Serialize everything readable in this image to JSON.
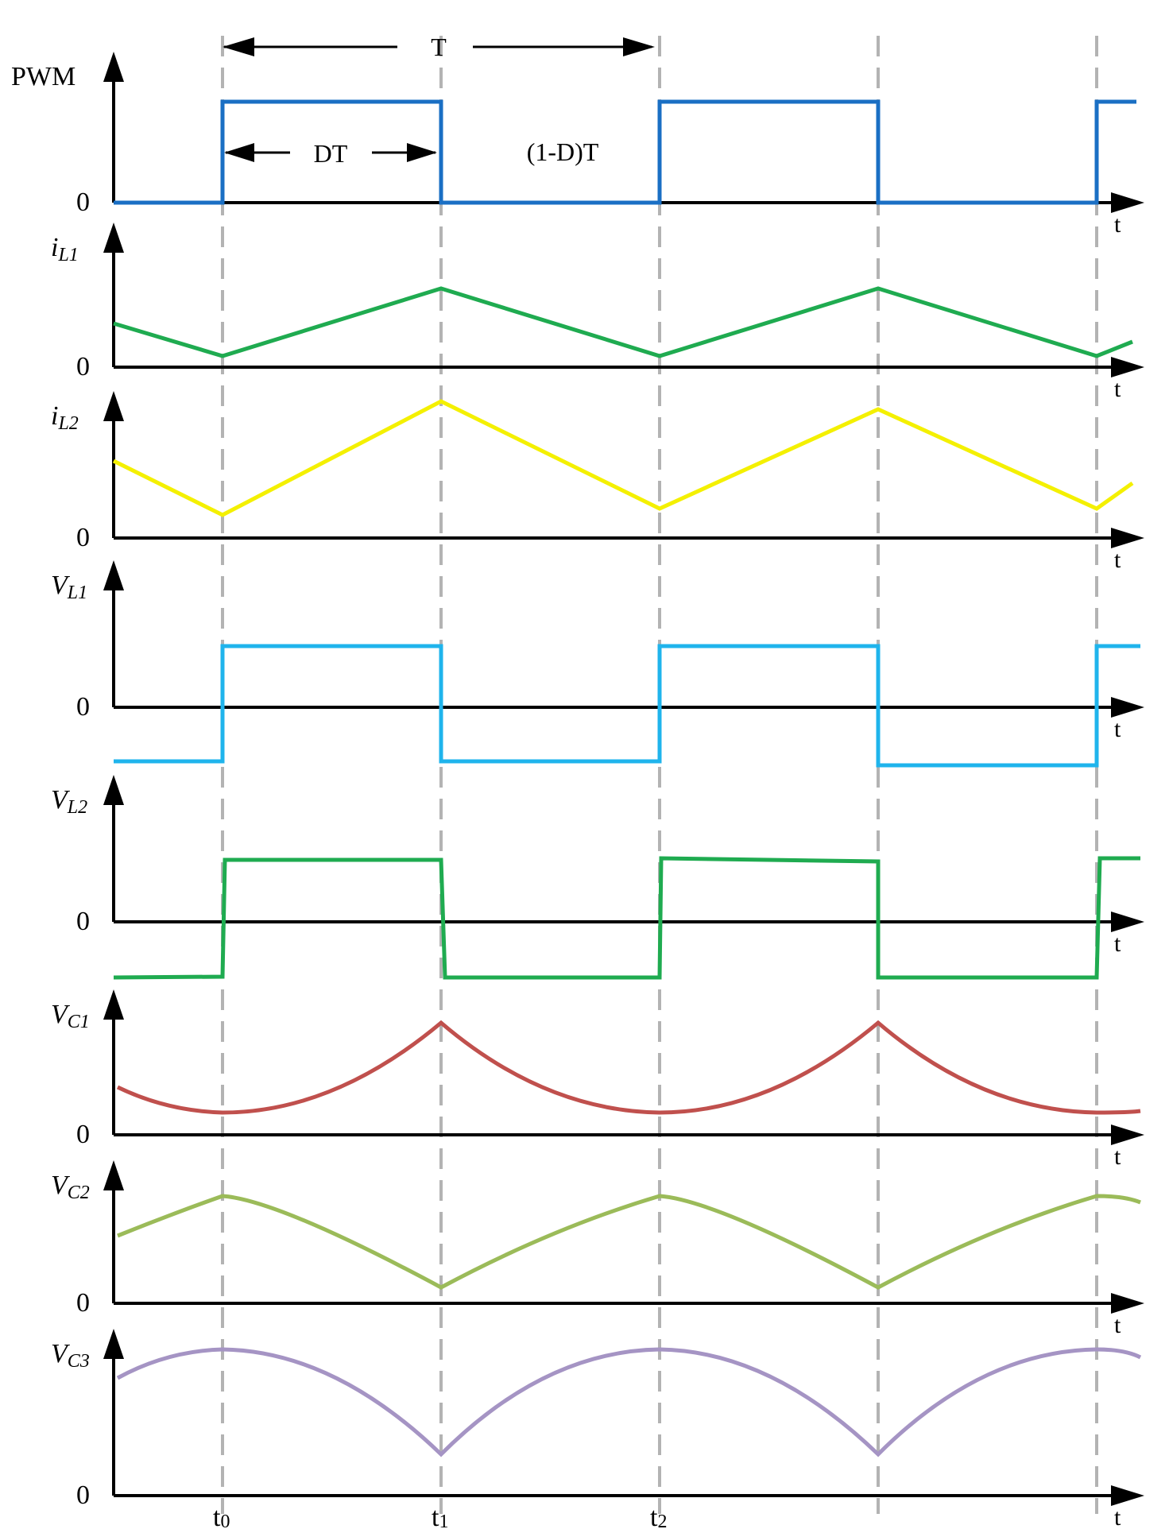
{
  "annotations": {
    "period": "T",
    "on_time": "DT",
    "off_time": "(1-D)T"
  },
  "time_markers": [
    {
      "main": "t",
      "sub": "0"
    },
    {
      "main": "t",
      "sub": "1"
    },
    {
      "main": "t",
      "sub": "2"
    }
  ],
  "waveforms": [
    {
      "label_main": "PWM",
      "label_sub": "",
      "zero_label": "0",
      "axis_label": "t",
      "color": "#1a6fc4",
      "shape": "pwm"
    },
    {
      "label_main": "i",
      "label_sub": "L1",
      "zero_label": "0",
      "axis_label": "t",
      "color": "#1fab50",
      "shape": "triangle"
    },
    {
      "label_main": "i",
      "label_sub": "L2",
      "zero_label": "0",
      "axis_label": "t",
      "color": "#f4f000",
      "shape": "triangle"
    },
    {
      "label_main": "V",
      "label_sub": "L1",
      "zero_label": "0",
      "axis_label": "t",
      "color": "#1fb4ec",
      "shape": "square_bipolar"
    },
    {
      "label_main": "V",
      "label_sub": "L2",
      "zero_label": "0",
      "axis_label": "t",
      "color": "#1fab50",
      "shape": "square_bipolar"
    },
    {
      "label_main": "V",
      "label_sub": "C1",
      "zero_label": "0",
      "axis_label": "t",
      "color": "#c0504d",
      "shape": "curve_peak_on"
    },
    {
      "label_main": "V",
      "label_sub": "C2",
      "zero_label": "0",
      "axis_label": "t",
      "color": "#9bbb59",
      "shape": "curve_valley_on"
    },
    {
      "label_main": "V",
      "label_sub": "C3",
      "zero_label": "0",
      "axis_label": "t",
      "color": "#a594c4",
      "shape": "curve_valley_on"
    }
  ]
}
